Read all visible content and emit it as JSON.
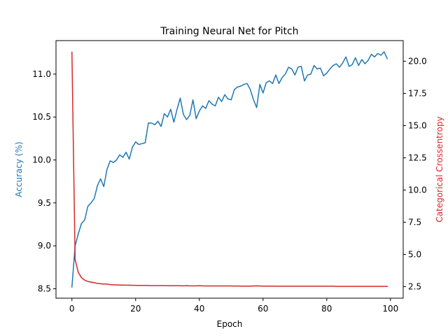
{
  "chart_data": {
    "type": "line",
    "title": "Training Neural Net for Pitch",
    "xlabel": "Epoch",
    "ylabel_left": "Accuracy (%)",
    "ylabel_right": "Categorical Crossentropy",
    "xlim": [
      -5,
      104
    ],
    "ylim_left": [
      8.39,
      11.39
    ],
    "ylim_right": [
      1.6,
      21.6
    ],
    "x_ticks": [
      0,
      20,
      40,
      60,
      80,
      100
    ],
    "y_left_ticks": [
      8.5,
      9.0,
      9.5,
      10.0,
      10.5,
      11.0
    ],
    "y_left_tick_labels": [
      "8.5",
      "9.0",
      "9.5",
      "10.0",
      "10.5",
      "11.0"
    ],
    "y_right_ticks": [
      2.5,
      5.0,
      7.5,
      10.0,
      12.5,
      15.0,
      17.5,
      20.0
    ],
    "y_right_tick_labels": [
      "2.5",
      "5.0",
      "7.5",
      "10.0",
      "12.5",
      "15.0",
      "17.5",
      "20.0"
    ],
    "grid": false,
    "colors": {
      "accuracy": "#1f77b4",
      "loss": "#d62728",
      "axes": "#000000"
    },
    "series": [
      {
        "axis": "left",
        "values": [
          8.52,
          9.0,
          9.14,
          9.26,
          9.3,
          9.46,
          9.5,
          9.55,
          9.7,
          9.78,
          9.69,
          9.89,
          9.99,
          9.97,
          10.0,
          10.06,
          10.03,
          10.09,
          10.01,
          10.15,
          10.21,
          10.18,
          10.19,
          10.2,
          10.43,
          10.43,
          10.41,
          10.45,
          10.39,
          10.54,
          10.5,
          10.59,
          10.44,
          10.59,
          10.72,
          10.53,
          10.47,
          10.52,
          10.7,
          10.48,
          10.57,
          10.63,
          10.6,
          10.69,
          10.65,
          10.63,
          10.73,
          10.68,
          10.76,
          10.71,
          10.7,
          10.82,
          10.85,
          10.86,
          10.88,
          10.89,
          10.82,
          10.7,
          10.61,
          10.88,
          10.78,
          10.9,
          10.92,
          10.89,
          10.99,
          10.89,
          10.96,
          11.0,
          11.08,
          11.06,
          10.99,
          11.08,
          11.09,
          10.92,
          10.99,
          11.0,
          11.1,
          11.06,
          11.07,
          10.98,
          11.01,
          11.06,
          11.1,
          11.12,
          11.08,
          11.13,
          11.2,
          11.09,
          11.11,
          11.19,
          11.1,
          11.17,
          11.12,
          11.16,
          11.23,
          11.2,
          11.24,
          11.22,
          11.26,
          11.18
        ]
      },
      {
        "axis": "right",
        "values": [
          20.7,
          4.6,
          3.6,
          3.2,
          3.0,
          2.9,
          2.85,
          2.8,
          2.75,
          2.72,
          2.7,
          2.7,
          2.65,
          2.64,
          2.63,
          2.62,
          2.62,
          2.61,
          2.61,
          2.6,
          2.6,
          2.59,
          2.59,
          2.59,
          2.59,
          2.58,
          2.58,
          2.58,
          2.58,
          2.58,
          2.57,
          2.57,
          2.57,
          2.57,
          2.57,
          2.56,
          2.57,
          2.56,
          2.56,
          2.56,
          2.57,
          2.56,
          2.55,
          2.55,
          2.55,
          2.55,
          2.55,
          2.55,
          2.55,
          2.55,
          2.55,
          2.54,
          2.55,
          2.54,
          2.54,
          2.54,
          2.54,
          2.55,
          2.56,
          2.55,
          2.54,
          2.54,
          2.54,
          2.54,
          2.53,
          2.53,
          2.53,
          2.53,
          2.53,
          2.53,
          2.53,
          2.53,
          2.53,
          2.53,
          2.53,
          2.53,
          2.53,
          2.53,
          2.53,
          2.53,
          2.53,
          2.53,
          2.53,
          2.52,
          2.52,
          2.52,
          2.52,
          2.52,
          2.52,
          2.52,
          2.52,
          2.52,
          2.52,
          2.52,
          2.52,
          2.52,
          2.52,
          2.52,
          2.52,
          2.52
        ]
      }
    ]
  }
}
